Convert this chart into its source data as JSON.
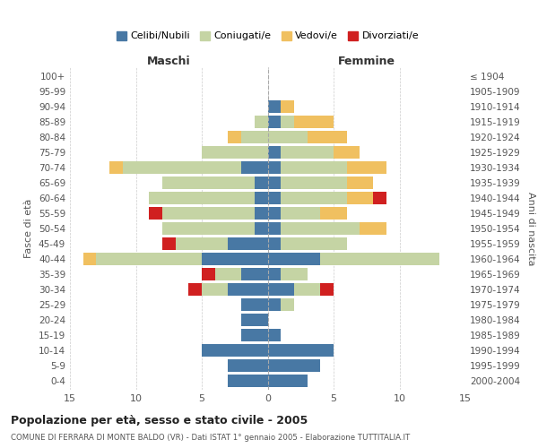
{
  "age_groups": [
    "0-4",
    "5-9",
    "10-14",
    "15-19",
    "20-24",
    "25-29",
    "30-34",
    "35-39",
    "40-44",
    "45-49",
    "50-54",
    "55-59",
    "60-64",
    "65-69",
    "70-74",
    "75-79",
    "80-84",
    "85-89",
    "90-94",
    "95-99",
    "100+"
  ],
  "birth_years": [
    "2000-2004",
    "1995-1999",
    "1990-1994",
    "1985-1989",
    "1980-1984",
    "1975-1979",
    "1970-1974",
    "1965-1969",
    "1960-1964",
    "1955-1959",
    "1950-1954",
    "1945-1949",
    "1940-1944",
    "1935-1939",
    "1930-1934",
    "1925-1929",
    "1920-1924",
    "1915-1919",
    "1910-1914",
    "1905-1909",
    "≤ 1904"
  ],
  "male": {
    "celibi": [
      3,
      3,
      5,
      2,
      2,
      2,
      3,
      2,
      5,
      3,
      1,
      1,
      1,
      1,
      2,
      0,
      0,
      0,
      0,
      0,
      0
    ],
    "coniugati": [
      0,
      0,
      0,
      0,
      0,
      0,
      2,
      2,
      8,
      4,
      7,
      7,
      8,
      7,
      9,
      5,
      2,
      1,
      0,
      0,
      0
    ],
    "vedovi": [
      0,
      0,
      0,
      0,
      0,
      0,
      0,
      0,
      1,
      0,
      0,
      0,
      0,
      0,
      1,
      0,
      1,
      0,
      0,
      0,
      0
    ],
    "divorziati": [
      0,
      0,
      0,
      0,
      0,
      0,
      1,
      1,
      0,
      1,
      0,
      1,
      0,
      0,
      0,
      0,
      0,
      0,
      0,
      0,
      0
    ]
  },
  "female": {
    "nubili": [
      3,
      4,
      5,
      1,
      0,
      1,
      2,
      1,
      4,
      1,
      1,
      1,
      1,
      1,
      1,
      1,
      0,
      1,
      1,
      0,
      0
    ],
    "coniugate": [
      0,
      0,
      0,
      0,
      0,
      1,
      2,
      2,
      9,
      5,
      6,
      3,
      5,
      5,
      5,
      4,
      3,
      1,
      0,
      0,
      0
    ],
    "vedove": [
      0,
      0,
      0,
      0,
      0,
      0,
      0,
      0,
      0,
      0,
      2,
      2,
      2,
      2,
      3,
      2,
      3,
      3,
      1,
      0,
      0
    ],
    "divorziate": [
      0,
      0,
      0,
      0,
      0,
      0,
      1,
      0,
      0,
      0,
      0,
      0,
      1,
      0,
      0,
      0,
      0,
      0,
      0,
      0,
      0
    ]
  },
  "colors": {
    "celibi": "#4878a4",
    "coniugati": "#c5d4a4",
    "vedovi": "#f0c060",
    "divorziati": "#d02020"
  },
  "xlim": 15,
  "title": "Popolazione per età, sesso e stato civile - 2005",
  "subtitle": "COMUNE DI FERRARA DI MONTE BALDO (VR) - Dati ISTAT 1° gennaio 2005 - Elaborazione TUTTITALIA.IT",
  "xlabel_left": "Maschi",
  "xlabel_right": "Femmine",
  "ylabel_left": "Fasce di età",
  "ylabel_right": "Anni di nascita",
  "legend_labels": [
    "Celibi/Nubili",
    "Coniugati/e",
    "Vedovi/e",
    "Divorziati/e"
  ],
  "bg_color": "#ffffff",
  "grid_color": "#cccccc",
  "bar_height": 0.8
}
